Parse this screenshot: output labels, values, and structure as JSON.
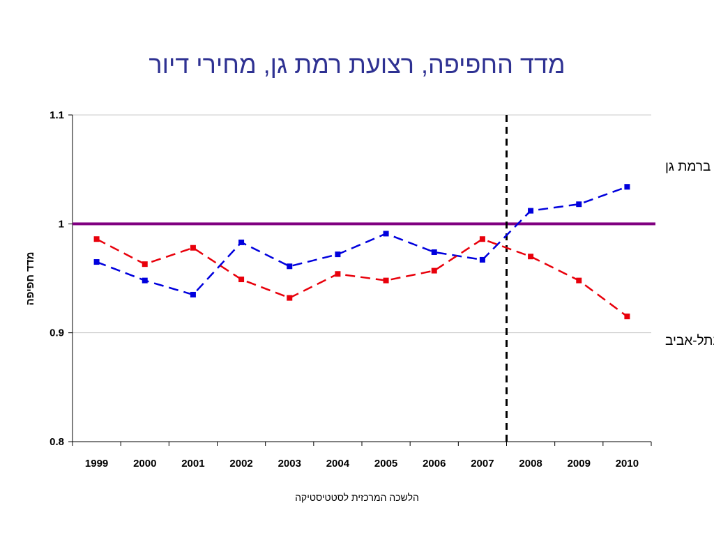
{
  "title": "מדד החפיפה, רצועת רמת גן, מחירי דיור",
  "source": "הלשכה המרכזית לסטטיסטיקה",
  "chart_data": {
    "type": "line",
    "categories": [
      "1999",
      "2000",
      "2001",
      "2002",
      "2003",
      "2004",
      "2005",
      "2006",
      "2007",
      "2008",
      "2009",
      "2010"
    ],
    "ylabel": "מדד חפיפה",
    "xlabel": "",
    "ylim": [
      0.8,
      1.1
    ],
    "yticks": [
      0.8,
      0.9,
      1,
      1.1
    ],
    "grid": true,
    "series": [
      {
        "name": "תל-אביב ברמת גן",
        "color": "#0000DD",
        "style": "dashed",
        "values": [
          0.965,
          0.948,
          0.935,
          0.983,
          0.961,
          0.972,
          0.991,
          0.974,
          0.967,
          1.012,
          1.018,
          1.034
        ]
      },
      {
        "name": "רמת גן בתל-אביב",
        "color": "#E8000B",
        "style": "dashed",
        "values": [
          0.986,
          0.963,
          0.978,
          0.949,
          0.932,
          0.954,
          0.948,
          0.957,
          0.986,
          0.97,
          0.948,
          0.915
        ]
      }
    ],
    "reference_line": {
      "y": 1,
      "color": "#800080"
    },
    "vertical_marker": {
      "category": "2008",
      "style": "dashed",
      "color": "#000000"
    }
  }
}
